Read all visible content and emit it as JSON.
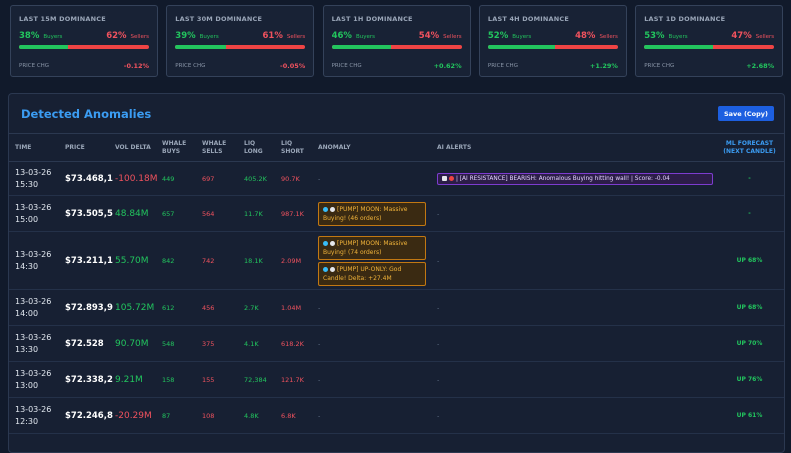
{
  "cards": [
    {
      "title": "LAST 15M DOMINANCE",
      "buyers": {
        "value": 38,
        "label": "38%"
      },
      "buyers_text": "Buyers",
      "sellers": {
        "value": 62,
        "label": "62%"
      },
      "sellers_text": "Sellers",
      "price_chg_label": "PRICE CHG",
      "price_chg": "-0.12%"
    },
    {
      "title": "LAST 30M DOMINANCE",
      "buyers": {
        "value": 39,
        "label": "39%"
      },
      "buyers_text": "Buyers",
      "sellers": {
        "value": 61,
        "label": "61%"
      },
      "sellers_text": "Sellers",
      "price_chg_label": "PRICE CHG",
      "price_chg": "-0.05%"
    },
    {
      "title": "LAST 1H DOMINANCE",
      "buyers": {
        "value": 46,
        "label": "46%"
      },
      "buyers_text": "Buyers",
      "sellers": {
        "value": 54,
        "label": "54%"
      },
      "sellers_text": "Sellers",
      "price_chg_label": "PRICE CHG",
      "price_chg": "+0.62%"
    },
    {
      "title": "LAST 4H DOMINANCE",
      "buyers": {
        "value": 52,
        "label": "52%"
      },
      "buyers_text": "Buyers",
      "sellers": {
        "value": 48,
        "label": "48%"
      },
      "sellers_text": "Sellers",
      "price_chg_label": "PRICE CHG",
      "price_chg": "+1.29%"
    },
    {
      "title": "LAST 1D DOMINANCE",
      "buyers": {
        "value": 53,
        "label": "53%"
      },
      "buyers_text": "Buyers",
      "sellers": {
        "value": 47,
        "label": "47%"
      },
      "sellers_text": "Sellers",
      "price_chg_label": "PRICE CHG",
      "price_chg": "+2.68%"
    }
  ],
  "panel": {
    "title": "Detected Anomalies",
    "button": "Save (Copy)"
  },
  "table": {
    "headers": [
      "TIME",
      "PRICE",
      "VOL DELTA",
      "WHALE BUYS",
      "WHALE SELLS",
      "LIQ LONG",
      "LIQ SHORT",
      "ANOMALY",
      "AI ALERTS",
      "ML FORECAST (NEXT CANDLE)"
    ],
    "rows": [
      {
        "date": "13-03-26",
        "time": "15:30",
        "price": "$73.468,1",
        "vol_delta": "-100.18M",
        "whale_buys": "449",
        "whale_sells": "697",
        "liq_long": "405.2K",
        "liq_short": "90.7K",
        "anomaly": "-",
        "ai_alerts": [
          "| [AI RESISTANCE] BEARISH: Anomalous Buying hitting wall! | Score: -0.04"
        ],
        "forecast": "-"
      },
      {
        "date": "13-03-26",
        "time": "15:00",
        "price": "$73.505,5",
        "vol_delta": "48.84M",
        "whale_buys": "657",
        "whale_sells": "564",
        "liq_long": "11.7K",
        "liq_short": "987.1K",
        "anomaly": [
          "[PUMP] MOON: Massive Buying! (46 orders)"
        ],
        "ai_alerts": "-",
        "forecast": "-"
      },
      {
        "date": "13-03-26",
        "time": "14:30",
        "price": "$73.211,1",
        "vol_delta": "55.70M",
        "whale_buys": "842",
        "whale_sells": "742",
        "liq_long": "18.1K",
        "liq_short": "2.09M",
        "anomaly": [
          "[PUMP] MOON: Massive Buying! (74 orders)",
          "[PUMP] UP-ONLY: God Candle! Delta: +27.4M"
        ],
        "ai_alerts": "-",
        "forecast": "UP 68%"
      },
      {
        "date": "13-03-26",
        "time": "14:00",
        "price": "$72.893,9",
        "vol_delta": "105.72M",
        "whale_buys": "612",
        "whale_sells": "456",
        "liq_long": "2.7K",
        "liq_short": "1.04M",
        "anomaly": "-",
        "ai_alerts": "-",
        "forecast": "UP 68%"
      },
      {
        "date": "13-03-26",
        "time": "13:30",
        "price": "$72.528",
        "vol_delta": "90.70M",
        "whale_buys": "548",
        "whale_sells": "375",
        "liq_long": "4.1K",
        "liq_short": "618.2K",
        "anomaly": "-",
        "ai_alerts": "-",
        "forecast": "UP 70%"
      },
      {
        "date": "13-03-26",
        "time": "13:00",
        "price": "$72.338,2",
        "vol_delta": "9.21M",
        "whale_buys": "158",
        "whale_sells": "155",
        "liq_long": "72,384",
        "liq_short": "121.7K",
        "anomaly": "-",
        "ai_alerts": "-",
        "forecast": "UP 76%"
      },
      {
        "date": "13-03-26",
        "time": "12:30",
        "price": "$72.246,8",
        "vol_delta": "-20.29M",
        "whale_buys": "87",
        "whale_sells": "108",
        "liq_long": "4.8K",
        "liq_short": "6.8K",
        "anomaly": "-",
        "ai_alerts": "-",
        "forecast": "UP 61%"
      }
    ]
  }
}
